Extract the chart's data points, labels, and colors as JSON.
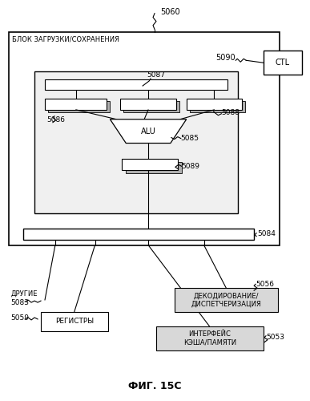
{
  "fig_label": "ФИГ. 15С",
  "title_text": "БЛОК ЗАГРУЗКИ/СОХРАНЕНИЯ",
  "label_5060": "5060",
  "label_5090": "5090",
  "label_5084": "5084",
  "label_5086": "5086",
  "label_5087": "5087",
  "label_5088": "5088",
  "label_5085": "5085",
  "label_5089": "5089",
  "label_ctl": "CTL",
  "label_alu": "ALU",
  "label_5083": "5083",
  "label_5059": "5059",
  "label_5056": "5056",
  "label_5053": "5053",
  "label_andere": "ДРУГИЕ",
  "label_reg": "РЕГИСТРЫ",
  "label_dec": "ДЕКОДИРОВАНИЕ/\nДИСПЕТЧЕРИЗАЦИЯ",
  "label_cache": "ИНТЕРФЕЙС\nКЭША/ПАМЯТИ",
  "bg_color": "#ffffff",
  "box_color": "white",
  "line_color": "black"
}
